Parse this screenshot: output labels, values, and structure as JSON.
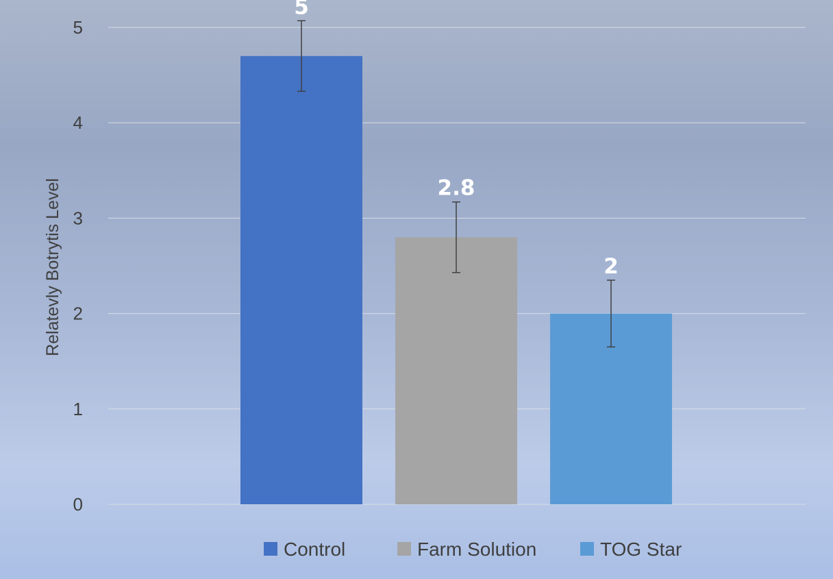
{
  "chart_data": {
    "type": "bar",
    "title": "",
    "xlabel": "",
    "ylabel": "Relatevly Botrytis Level",
    "ylim": [
      0,
      5
    ],
    "yticks": [
      0,
      1,
      2,
      3,
      4,
      5
    ],
    "grid": true,
    "legend_position": "bottom",
    "series": [
      {
        "name": "Control",
        "value": 4.7,
        "label": "5",
        "error": 0.37,
        "color": "#4472c4"
      },
      {
        "name": "Farm Solution",
        "value": 2.8,
        "label": "2.8",
        "error": 0.37,
        "color": "#a5a5a5"
      },
      {
        "name": "TOG Star",
        "value": 2.0,
        "label": "2",
        "error": 0.35,
        "color": "#5b9bd5"
      }
    ]
  }
}
